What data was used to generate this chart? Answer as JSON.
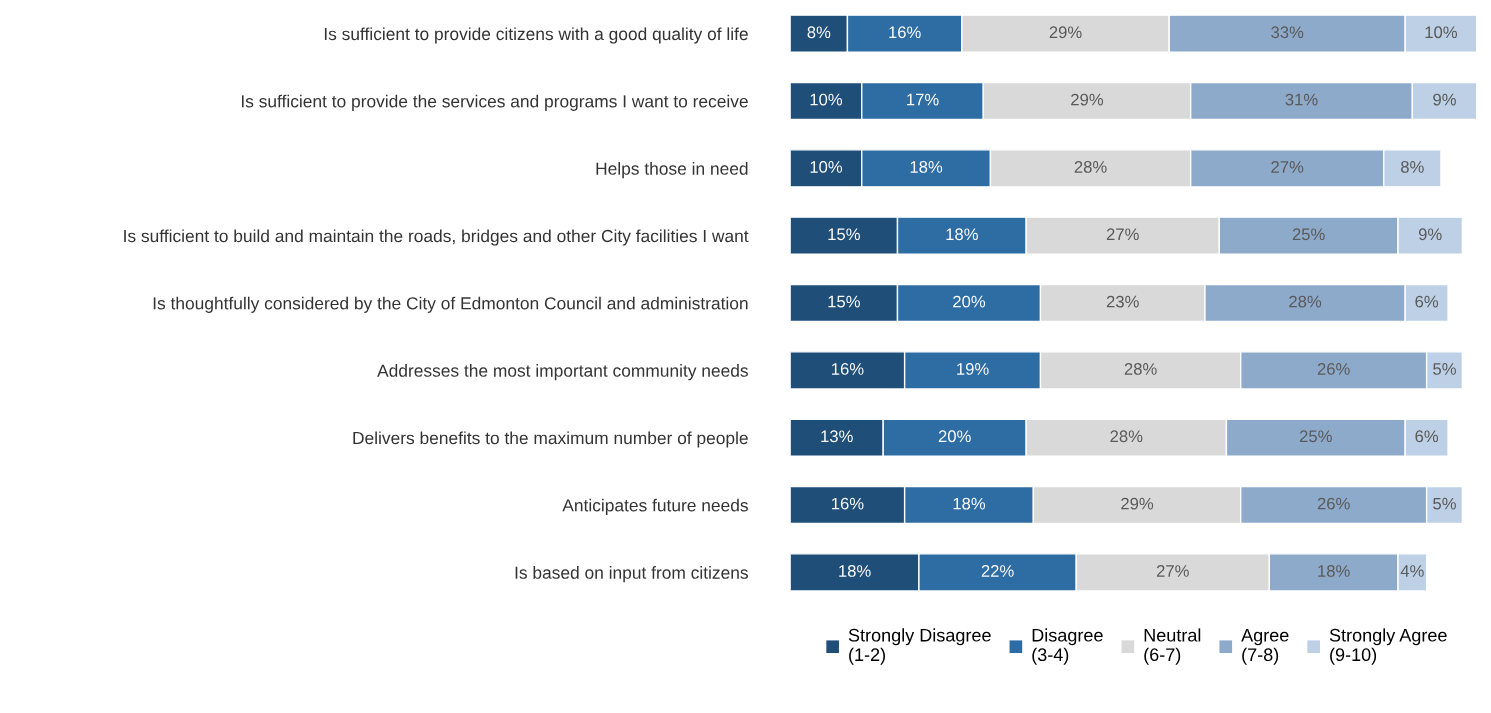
{
  "chart_data": {
    "type": "bar",
    "orientation": "horizontal",
    "stacked": true,
    "categories": [
      "Is sufficient to provide citizens with a good quality of life",
      "Is sufficient to provide the services and programs I want to receive",
      "Helps those in need",
      "Is sufficient to build and maintain the roads, bridges and other City facilities I want",
      "Is thoughtfully considered by the City of Edmonton Council and administration",
      "Addresses the most important community needs",
      "Delivers benefits to the maximum number of people",
      "Anticipates future needs",
      "Is based on input from citizens"
    ],
    "tick_labels": "y",
    "legend": "bottom",
    "series": [
      {
        "name": "Strongly Disagree\n(1-2)",
        "color": "#1f4e79",
        "values": [
          8,
          10,
          10,
          15,
          15,
          16,
          13,
          16,
          18
        ],
        "value_labels": [
          "8%",
          "10%",
          "10%",
          "15%",
          "15%",
          "16%",
          "13%",
          "16%",
          "18%"
        ]
      },
      {
        "name": "Disagree\n(3-4)",
        "color": "#2e6da4",
        "values": [
          16,
          17,
          18,
          18,
          20,
          19,
          20,
          18,
          22
        ],
        "value_labels": [
          "16%",
          "17%",
          "18%",
          "18%",
          "20%",
          "19%",
          "20%",
          "18%",
          "22%"
        ]
      },
      {
        "name": "Neutral\n(6-7)",
        "color": "#d9d9d9",
        "values": [
          29,
          29,
          28,
          27,
          23,
          28,
          28,
          29,
          27
        ],
        "value_labels": [
          "29%",
          "29%",
          "28%",
          "27%",
          "23%",
          "28%",
          "28%",
          "29%",
          "27%"
        ]
      },
      {
        "name": "Agree\n(7-8)",
        "color": "#8eaacb",
        "values": [
          33,
          31,
          27,
          25,
          28,
          26,
          25,
          26,
          18
        ],
        "value_labels": [
          "33%",
          "31%",
          "27%",
          "25%",
          "28%",
          "26%",
          "25%",
          "26%",
          "18%"
        ]
      },
      {
        "name": "Strongly Agree\n(9-10)",
        "color": "#bdd0e6",
        "values": [
          10,
          9,
          8,
          9,
          6,
          5,
          6,
          5,
          4
        ],
        "value_labels": [
          "10%",
          "9%",
          "8%",
          "9%",
          "6%",
          "5%",
          "6%",
          "5%",
          "4%"
        ]
      }
    ]
  }
}
